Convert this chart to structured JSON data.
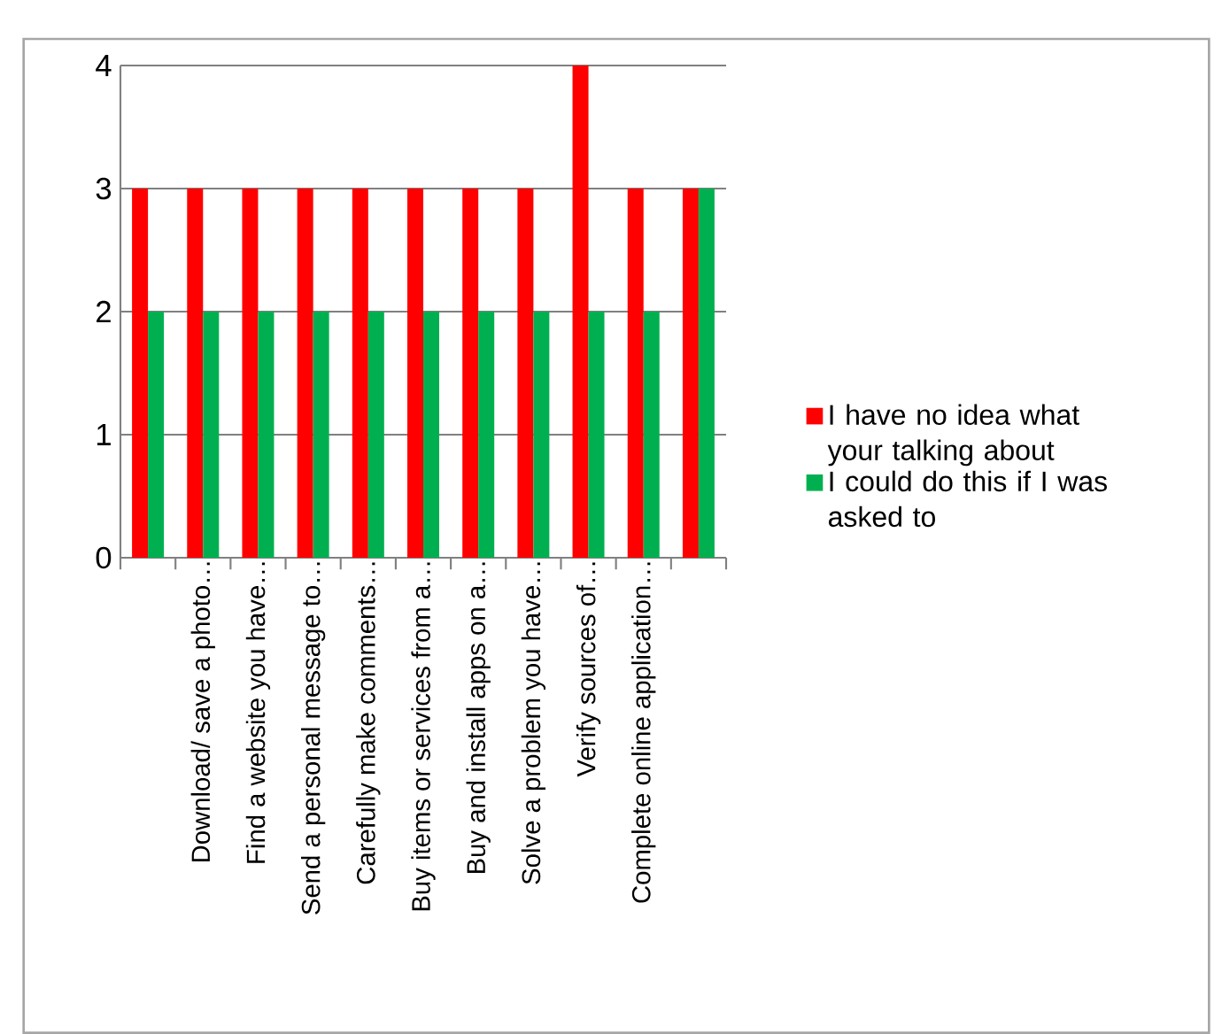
{
  "chart_data": {
    "type": "bar",
    "categories": [
      null,
      "Download/ save a photo…",
      "Find a website you have…",
      "Send a personal message to…",
      "Carefully make comments…",
      "Buy items or services from a…",
      "Buy and install apps on a…",
      "Solve a problem you have…",
      "Verify sources of…",
      "Complete online application…",
      null
    ],
    "series": [
      {
        "name": "I have no idea what your talking about",
        "color": "#ff0000",
        "values": [
          3,
          3,
          3,
          3,
          3,
          3,
          3,
          3,
          4,
          3,
          3
        ]
      },
      {
        "name": "I could do this if I was asked to",
        "color": "#00b050",
        "values": [
          2,
          2,
          2,
          2,
          2,
          2,
          2,
          2,
          2,
          2,
          3
        ]
      }
    ],
    "ylim": [
      0,
      4
    ],
    "yticks": [
      0,
      1,
      2,
      3,
      4
    ],
    "grid": "y",
    "legend": "right"
  }
}
